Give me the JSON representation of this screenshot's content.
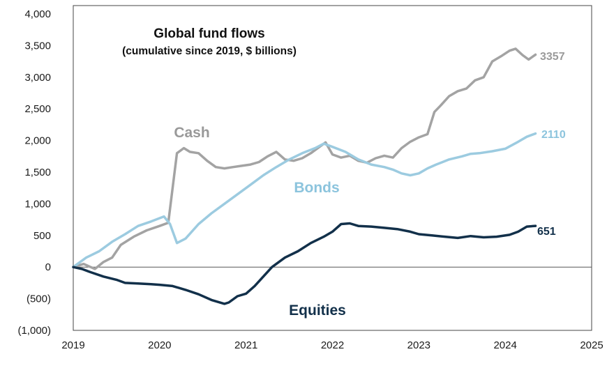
{
  "chart_data": {
    "type": "line",
    "title": "Global fund flows",
    "subtitle": "(cumulative since 2019, $ billions)",
    "xlabel": "",
    "ylabel": "",
    "xlim": [
      2019,
      2025
    ],
    "ylim": [
      -1000,
      4000
    ],
    "x_ticks": [
      "2019",
      "2020",
      "2021",
      "2022",
      "2023",
      "2024",
      "2025"
    ],
    "y_ticks": [
      "4,000",
      "3,500",
      "3,000",
      "2,500",
      "2,000",
      "1,500",
      "1,000",
      "500",
      "0",
      "(500)",
      "(1,000)"
    ],
    "grid": false,
    "series": [
      {
        "name": "Cash",
        "color": "#a3a3a3",
        "end_label": "3357",
        "x": [
          2019.0,
          2019.12,
          2019.25,
          2019.35,
          2019.45,
          2019.55,
          2019.7,
          2019.85,
          2020.0,
          2020.1,
          2020.2,
          2020.28,
          2020.35,
          2020.45,
          2020.55,
          2020.65,
          2020.75,
          2020.85,
          2020.95,
          2021.05,
          2021.15,
          2021.25,
          2021.35,
          2021.45,
          2021.55,
          2021.65,
          2021.75,
          2021.85,
          2021.92,
          2022.0,
          2022.1,
          2022.2,
          2022.3,
          2022.4,
          2022.5,
          2022.6,
          2022.7,
          2022.8,
          2022.9,
          2023.0,
          2023.1,
          2023.18,
          2023.25,
          2023.35,
          2023.45,
          2023.55,
          2023.65,
          2023.75,
          2023.85,
          2023.95,
          2024.05,
          2024.12,
          2024.2,
          2024.27,
          2024.35
        ],
        "values": [
          0,
          50,
          -30,
          80,
          150,
          350,
          480,
          580,
          650,
          700,
          1800,
          1880,
          1820,
          1800,
          1680,
          1580,
          1560,
          1580,
          1600,
          1620,
          1660,
          1750,
          1820,
          1700,
          1680,
          1720,
          1800,
          1900,
          1970,
          1780,
          1730,
          1760,
          1680,
          1650,
          1720,
          1760,
          1730,
          1880,
          1980,
          2050,
          2100,
          2450,
          2550,
          2700,
          2780,
          2820,
          2950,
          3000,
          3250,
          3330,
          3420,
          3450,
          3350,
          3280,
          3357
        ]
      },
      {
        "name": "Bonds",
        "color": "#9ccbe0",
        "end_label": "2110",
        "x": [
          2019.0,
          2019.15,
          2019.3,
          2019.45,
          2019.6,
          2019.75,
          2019.9,
          2020.05,
          2020.12,
          2020.2,
          2020.3,
          2020.45,
          2020.6,
          2020.75,
          2020.9,
          2021.05,
          2021.2,
          2021.35,
          2021.5,
          2021.65,
          2021.8,
          2021.9,
          2022.0,
          2022.15,
          2022.3,
          2022.45,
          2022.6,
          2022.7,
          2022.8,
          2022.9,
          2023.0,
          2023.1,
          2023.2,
          2023.35,
          2023.5,
          2023.6,
          2023.7,
          2023.85,
          2024.0,
          2024.15,
          2024.25,
          2024.35
        ],
        "values": [
          0,
          150,
          250,
          400,
          520,
          650,
          720,
          800,
          680,
          380,
          450,
          680,
          850,
          1000,
          1150,
          1300,
          1450,
          1580,
          1700,
          1800,
          1880,
          1950,
          1900,
          1820,
          1700,
          1620,
          1580,
          1540,
          1480,
          1450,
          1480,
          1560,
          1620,
          1700,
          1750,
          1790,
          1800,
          1830,
          1870,
          1980,
          2060,
          2110
        ]
      },
      {
        "name": "Equities",
        "color": "#12304a",
        "end_label": "651",
        "x": [
          2019.0,
          2019.1,
          2019.2,
          2019.35,
          2019.5,
          2019.6,
          2019.75,
          2019.9,
          2020.0,
          2020.15,
          2020.3,
          2020.45,
          2020.6,
          2020.75,
          2020.8,
          2020.9,
          2021.0,
          2021.1,
          2021.2,
          2021.3,
          2021.45,
          2021.6,
          2021.75,
          2021.9,
          2022.0,
          2022.1,
          2022.2,
          2022.3,
          2022.45,
          2022.6,
          2022.75,
          2022.9,
          2023.0,
          2023.15,
          2023.3,
          2023.45,
          2023.6,
          2023.75,
          2023.9,
          2024.05,
          2024.15,
          2024.25,
          2024.35
        ],
        "values": [
          0,
          -30,
          -80,
          -150,
          -200,
          -250,
          -260,
          -270,
          -280,
          -300,
          -360,
          -430,
          -520,
          -580,
          -560,
          -460,
          -420,
          -300,
          -150,
          0,
          150,
          250,
          380,
          480,
          560,
          680,
          690,
          650,
          640,
          620,
          600,
          560,
          520,
          500,
          480,
          460,
          490,
          470,
          480,
          510,
          560,
          640,
          651
        ]
      }
    ]
  }
}
